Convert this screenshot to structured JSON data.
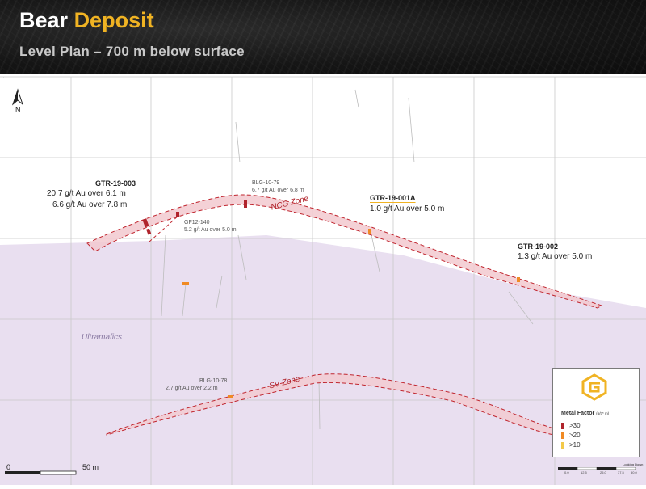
{
  "header": {
    "title_main": "Bear",
    "title_highlight": "Deposit",
    "subtitle": "Level Plan – 700 m below surface"
  },
  "map": {
    "north_label": "N",
    "rock_unit": "Ultramafics",
    "zones": {
      "ncg": "NCG Zone",
      "sv": "SV Zone"
    },
    "intercepts": [
      {
        "hole": "GTR-19-003",
        "lines": [
          "20.7 g/t Au over 6.1 m",
          "6.6 g/t Au over 7.8 m"
        ]
      },
      {
        "hole": "GTR-19-001A",
        "lines": [
          "1.0 g/t Au over 5.0 m"
        ]
      },
      {
        "hole": "GTR-19-002",
        "lines": [
          "1.3 g/t Au over 5.0 m"
        ]
      }
    ],
    "historic": [
      {
        "hole": "BLG-10-79",
        "text": "6.7 g/t Au over 6.8 m"
      },
      {
        "hole": "GF12-140",
        "text": "5.2 g/t Au over 5.0 m"
      },
      {
        "hole": "BLG-10-78",
        "text": "2.7 g/t Au over 2.2 m"
      }
    ],
    "scale_bar": {
      "start": "0",
      "end": "50 m"
    },
    "colors": {
      "zone_fill": "#f2c9cf",
      "zone_stroke": "#c0262f",
      "ultramafic_fill": "#e9dff0",
      "grid": "#c8c8c8",
      "accent": "#f0b323"
    }
  },
  "legend": {
    "title": "Metal Factor",
    "unit": "(g/t * m)",
    "items": [
      {
        "label": ">30",
        "color": "#b0242c"
      },
      {
        "label": ">20",
        "color": "#f08a24"
      },
      {
        "label": ">10",
        "color": "#f3c94a"
      }
    ],
    "scale_label": "Looking Down",
    "scale_ticks": [
      "0.0",
      "12.5",
      "25.0",
      "37.5",
      "50.0"
    ]
  }
}
